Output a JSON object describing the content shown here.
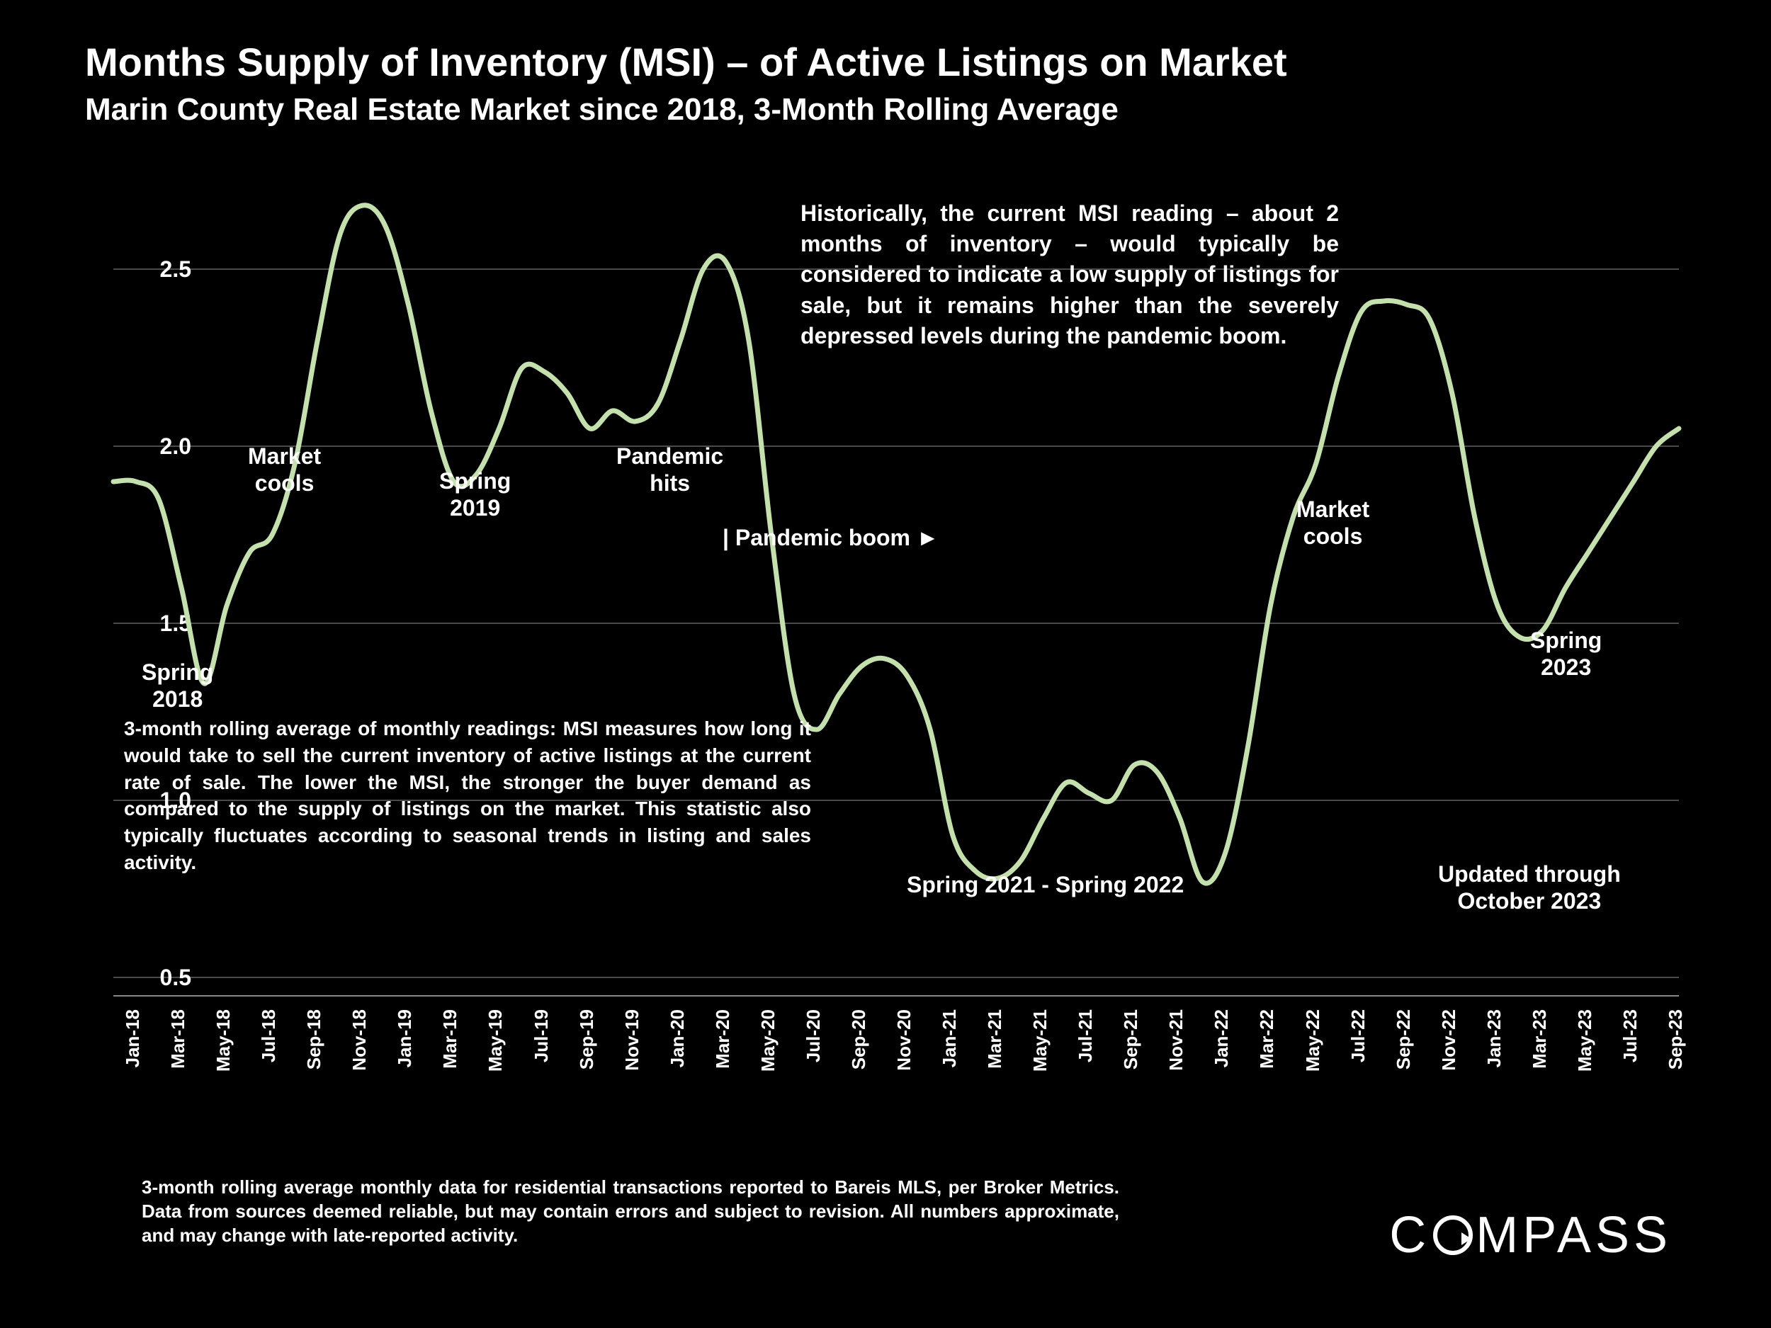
{
  "title": "Months Supply of Inventory (MSI) – of Active Listings on Market",
  "subtitle": "Marin County Real Estate Market since 2018, 3-Month Rolling Average",
  "chart": {
    "type": "line",
    "background_color": "#000000",
    "line_color": "#c3e0ad",
    "line_width": 7,
    "grid_color": "#4a4a4a",
    "text_color": "#ffffff",
    "ylim": [
      0.45,
      2.75
    ],
    "yticks": [
      0.5,
      1.0,
      1.5,
      2.0,
      2.5
    ],
    "ytick_labels": [
      "0.5",
      "1.0",
      "1.5",
      "2.0",
      "2.5"
    ],
    "x_labels": [
      "Jan-18",
      "Mar-18",
      "May-18",
      "Jul-18",
      "Sep-18",
      "Nov-18",
      "Jan-19",
      "Mar-19",
      "May-19",
      "Jul-19",
      "Sep-19",
      "Nov-19",
      "Jan-20",
      "Mar-20",
      "May-20",
      "Jul-20",
      "Sep-20",
      "Nov-20",
      "Jan-21",
      "Mar-21",
      "May-21",
      "Jul-21",
      "Sep-21",
      "Nov-21",
      "Jan-22",
      "Mar-22",
      "May-22",
      "Jul-22",
      "Sep-22",
      "Nov-22",
      "Jan-23",
      "Mar-23",
      "May-23",
      "Jul-23",
      "Sep-23"
    ],
    "values": [
      1.9,
      1.9,
      1.85,
      1.6,
      1.33,
      1.55,
      1.7,
      1.75,
      1.95,
      2.3,
      2.6,
      2.68,
      2.62,
      2.4,
      2.1,
      1.9,
      1.92,
      2.05,
      2.22,
      2.21,
      2.15,
      2.05,
      2.1,
      2.07,
      2.12,
      2.3,
      2.5,
      2.52,
      2.3,
      1.75,
      1.3,
      1.2,
      1.3,
      1.38,
      1.4,
      1.35,
      1.2,
      0.9,
      0.8,
      0.78,
      0.83,
      0.95,
      1.05,
      1.02,
      1.0,
      1.1,
      1.08,
      0.95,
      0.77,
      0.85,
      1.15,
      1.55,
      1.8,
      1.95,
      2.2,
      2.38,
      2.41,
      2.4,
      2.36,
      2.15,
      1.8,
      1.55,
      1.46,
      1.48,
      1.6,
      1.7,
      1.8,
      1.9,
      2.0,
      2.05
    ],
    "title_fontsize": 56,
    "subtitle_fontsize": 44,
    "tick_fontsize": 28,
    "annotation_fontsize": 32
  },
  "annotations": {
    "spring_2018": "Spring\n2018",
    "market_cools_1": "Market\ncools",
    "spring_2019": "Spring\n2019",
    "pandemic_hits": "Pandemic\nhits",
    "pandemic_boom": "| Pandemic boom ►",
    "spring_2021_2022": "Spring 2021 - Spring 2022",
    "market_cools_2": "Market\ncools",
    "spring_2023": "Spring\n2023",
    "updated": "Updated through\nOctober 2023"
  },
  "paragraphs": {
    "top": "Historically, the current MSI reading – about 2 months of inventory – would typically be considered to indicate a low supply of listings for sale, but it remains higher than the severely depressed levels during the pandemic boom.",
    "mid": "3-month rolling average of monthly readings: MSI measures how long it would take to sell the current inventory of active listings at the current rate of sale. The lower the MSI, the stronger the buyer demand as compared to the supply of listings on the market. This statistic also typically fluctuates according to seasonal trends in listing and sales activity.",
    "footer": "3-month rolling average monthly data for residential transactions reported to Bareis MLS, per Broker Metrics. Data from sources deemed reliable, but may contain errors and subject to revision. All numbers approximate, and may change with late-reported activity."
  },
  "logo_text": "COMPASS"
}
